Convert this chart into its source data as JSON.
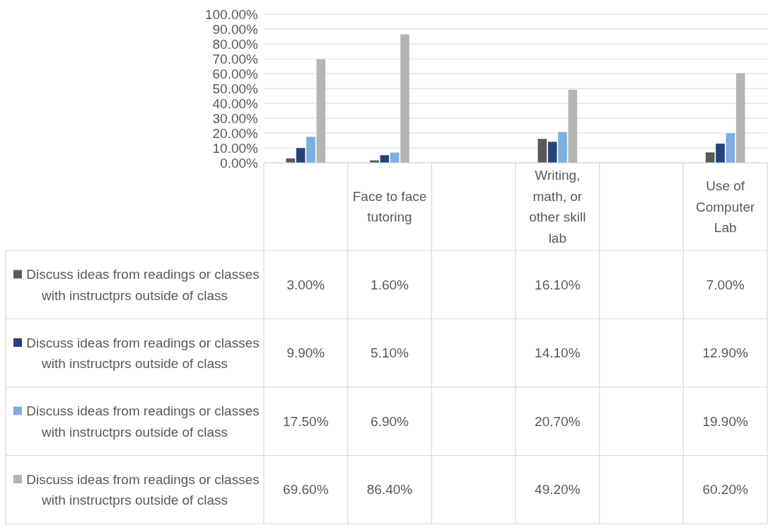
{
  "chart_data": {
    "type": "bar",
    "categories": [
      null,
      "Face to face tutoring",
      null,
      "Writing, math, or other skill lab",
      null,
      "Use of Computer Lab"
    ],
    "series": [
      {
        "name": "Discuss ideas from readings or classes with instructprs outside of class",
        "color": "#595959",
        "values": [
          3.0,
          1.6,
          null,
          16.1,
          null,
          7.0
        ],
        "value_labels": [
          "3.00%",
          "1.60%",
          null,
          "16.10%",
          null,
          "7.00%"
        ]
      },
      {
        "name": "Discuss ideas from readings or classes with instructprs outside of class",
        "color": "#264478",
        "values": [
          9.9,
          5.1,
          null,
          14.1,
          null,
          12.9
        ],
        "value_labels": [
          "9.90%",
          "5.10%",
          null,
          "14.10%",
          null,
          "12.90%"
        ]
      },
      {
        "name": "Discuss ideas from readings or classes with instructprs outside of class",
        "color": "#7caee0",
        "values": [
          17.5,
          6.9,
          null,
          20.7,
          null,
          19.9
        ],
        "value_labels": [
          "17.50%",
          "6.90%",
          null,
          "20.70%",
          null,
          "19.90%"
        ]
      },
      {
        "name": "Discuss ideas from readings or classes with instructprs outside of class",
        "color": "#b4b4b4",
        "values": [
          69.6,
          86.4,
          null,
          49.2,
          null,
          60.2
        ],
        "value_labels": [
          "69.60%",
          "86.40%",
          null,
          "49.20%",
          null,
          "60.20%"
        ]
      }
    ],
    "ylim": [
      0,
      100
    ],
    "yticks": [
      {
        "value": 0,
        "label": "0.00%"
      },
      {
        "value": 10,
        "label": "10.00%"
      },
      {
        "value": 20,
        "label": "20.00%"
      },
      {
        "value": 30,
        "label": "30.00%"
      },
      {
        "value": 40,
        "label": "40.00%"
      },
      {
        "value": 50,
        "label": "50.00%"
      },
      {
        "value": 60,
        "label": "60.00%"
      },
      {
        "value": 70,
        "label": "70.00%"
      },
      {
        "value": 80,
        "label": "80.00%"
      },
      {
        "value": 90,
        "label": "90.00%"
      },
      {
        "value": 100,
        "label": "100.00%"
      }
    ],
    "grid": "y",
    "legend": "left"
  }
}
